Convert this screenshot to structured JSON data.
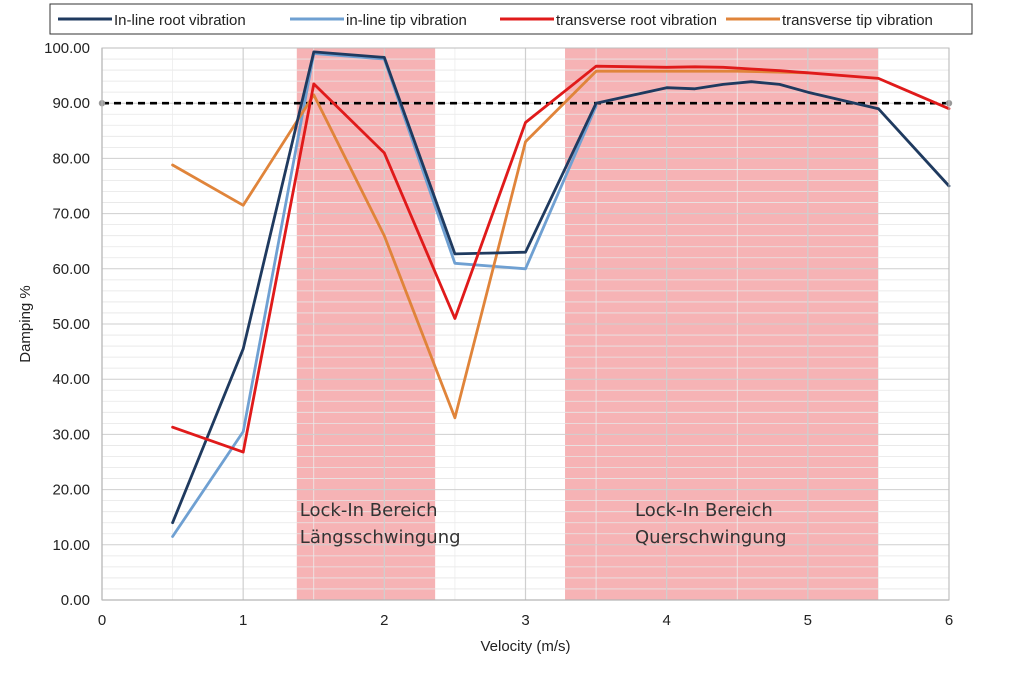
{
  "chart_data": {
    "type": "line",
    "xlabel": "Velocity (m/s)",
    "ylabel": "Damping %",
    "xlim": [
      0,
      6
    ],
    "ylim": [
      0,
      100
    ],
    "x_ticks": [
      "0",
      "1",
      "2",
      "3",
      "4",
      "5",
      "6"
    ],
    "y_ticks": [
      "0.00",
      "10.00",
      "20.00",
      "30.00",
      "40.00",
      "50.00",
      "60.00",
      "70.00",
      "80.00",
      "90.00",
      "100.00"
    ],
    "grid": true,
    "legend_position": "top",
    "reference_line": {
      "y": 90,
      "style": "dashed",
      "color": "#000000"
    },
    "shaded_regions": [
      {
        "x_start": 1.38,
        "x_end": 2.36,
        "label_line1": "Lock-In Bereich",
        "label_line2": "Längsschwingung",
        "color": "#f4a6a8"
      },
      {
        "x_start": 3.28,
        "x_end": 5.5,
        "label_line1": "Lock-In Bereich",
        "label_line2": "Querschwingung",
        "color": "#f4a6a8"
      }
    ],
    "series": [
      {
        "name": "In-line root vibration",
        "color": "#1f3a5f",
        "x": [
          0.5,
          1.0,
          1.5,
          2.0,
          2.5,
          3.0,
          3.5,
          4.0,
          4.2,
          4.4,
          4.6,
          4.8,
          5.0,
          5.5,
          6.0
        ],
        "y": [
          14,
          45.5,
          99.3,
          98.3,
          62.7,
          63,
          90,
          92.8,
          92.6,
          93.4,
          93.9,
          93.4,
          92,
          89,
          75
        ]
      },
      {
        "name": "in-line tip vibration",
        "color": "#6fa0d2",
        "x": [
          0.5,
          1.0,
          1.5,
          2.0,
          2.5,
          3.0,
          3.5
        ],
        "y": [
          11.5,
          30.5,
          99,
          98,
          61,
          60,
          89.5
        ]
      },
      {
        "name": "transverse root vibration",
        "color": "#e01a1a",
        "x": [
          0.5,
          1.0,
          1.5,
          2.0,
          2.5,
          3.0,
          3.5,
          4.0,
          4.2,
          4.4,
          4.6,
          4.8,
          5.0,
          5.5,
          6.0
        ],
        "y": [
          31.3,
          26.8,
          93.5,
          81,
          51,
          86.5,
          96.7,
          96.5,
          96.6,
          96.5,
          96.2,
          95.9,
          95.5,
          94.5,
          89
        ]
      },
      {
        "name": "transverse tip vibration",
        "color": "#e0843a",
        "x": [
          0.5,
          1.0,
          1.5,
          2.0,
          2.5,
          3.0,
          3.5,
          4.0,
          4.5,
          5.0
        ],
        "y": [
          78.8,
          71.5,
          91.5,
          66,
          33,
          83,
          95.8,
          95.8,
          95.8,
          95.5
        ]
      }
    ]
  }
}
